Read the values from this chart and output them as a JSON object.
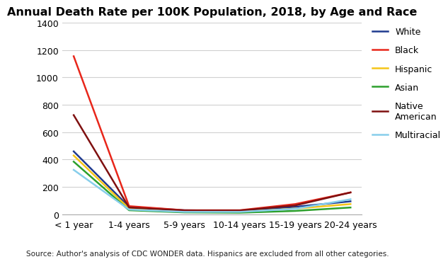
{
  "title": "Annual Death Rate per 100K Population, 2018, by Age and Race",
  "source": "Source: Author's analysis of CDC WONDER data. Hispanics are excluded from all other categories.",
  "categories": [
    "< 1 year",
    "1-4 years",
    "5-9 years",
    "10-14 years",
    "15-19 years",
    "20-24 years"
  ],
  "series": [
    {
      "label": "White",
      "color": "#1f3a8f",
      "linewidth": 1.8,
      "values": [
        460,
        55,
        30,
        25,
        55,
        95
      ]
    },
    {
      "label": "Black",
      "color": "#e8261a",
      "linewidth": 1.8,
      "values": [
        1155,
        60,
        30,
        30,
        75,
        160
      ]
    },
    {
      "label": "Hispanic",
      "color": "#f5c518",
      "linewidth": 1.8,
      "values": [
        430,
        42,
        20,
        18,
        42,
        75
      ]
    },
    {
      "label": "Asian",
      "color": "#2ca02c",
      "linewidth": 1.8,
      "values": [
        385,
        30,
        14,
        12,
        25,
        50
      ]
    },
    {
      "label": "Native\nAmerican",
      "color": "#7f1010",
      "linewidth": 1.8,
      "values": [
        725,
        50,
        28,
        28,
        65,
        160
      ]
    },
    {
      "label": "Multiracial",
      "color": "#87ceeb",
      "linewidth": 1.8,
      "values": [
        325,
        35,
        18,
        18,
        40,
        110
      ]
    }
  ],
  "ylim": [
    0,
    1400
  ],
  "yticks": [
    0,
    200,
    400,
    600,
    800,
    1000,
    1200,
    1400
  ],
  "background_color": "#ffffff",
  "grid_color": "#d0d0d0",
  "title_fontsize": 11.5,
  "tick_fontsize": 9,
  "legend_fontsize": 9,
  "source_fontsize": 7.5
}
